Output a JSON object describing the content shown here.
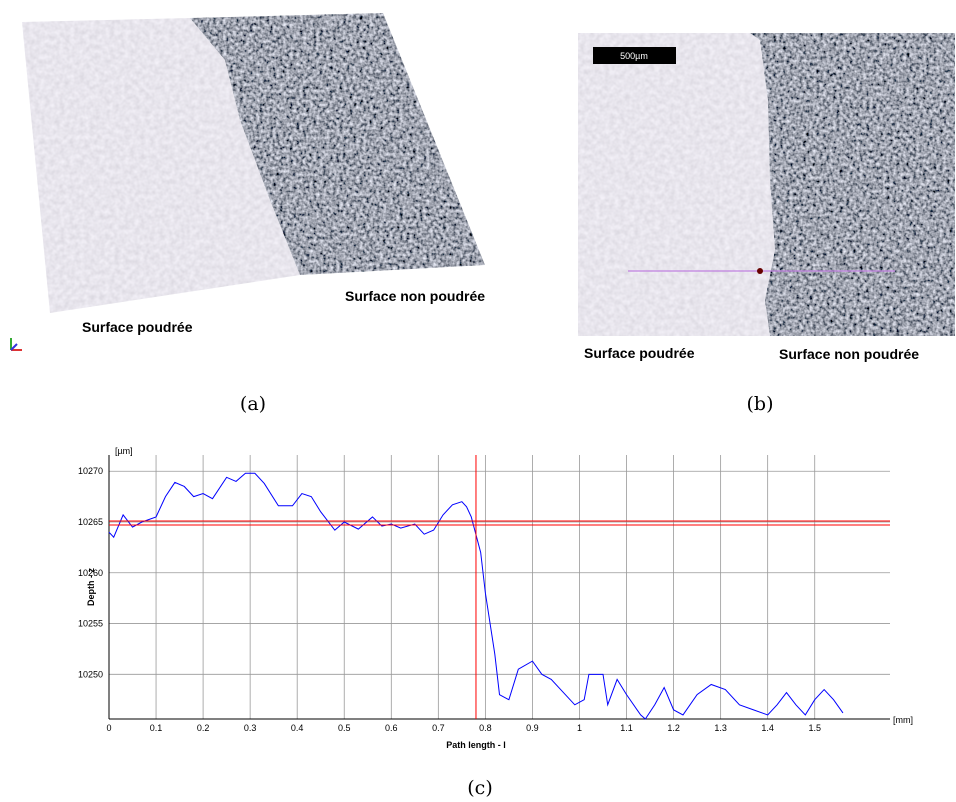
{
  "figures": [
    {
      "caption": "(a)",
      "labels": [
        "Surface non poudrée",
        "Surface poudrée"
      ]
    },
    {
      "caption": "(b)",
      "scale_bar": "500µm",
      "labels": [
        "Surface poudrée",
        "Surface non poudrée"
      ]
    }
  ],
  "chart_data": {
    "type": "line",
    "caption": "(c)",
    "y_unit": "[µm]",
    "y_label": "Depth - z",
    "x_label": "Path length - l",
    "x_unit": "[mm]",
    "x": [
      0,
      0.01,
      0.03,
      0.05,
      0.07,
      0.1,
      0.12,
      0.14,
      0.16,
      0.18,
      0.2,
      0.22,
      0.25,
      0.27,
      0.29,
      0.31,
      0.33,
      0.36,
      0.39,
      0.41,
      0.43,
      0.45,
      0.48,
      0.5,
      0.53,
      0.56,
      0.58,
      0.6,
      0.62,
      0.65,
      0.67,
      0.69,
      0.71,
      0.73,
      0.75,
      0.76,
      0.77,
      0.79,
      0.8,
      0.82,
      0.83,
      0.85,
      0.87,
      0.9,
      0.92,
      0.94,
      0.96,
      0.99,
      1.01,
      1.02,
      1.05,
      1.06,
      1.08,
      1.1,
      1.13,
      1.14,
      1.16,
      1.18,
      1.2,
      1.22,
      1.25,
      1.28,
      1.31,
      1.34,
      1.37,
      1.4,
      1.42,
      1.44,
      1.46,
      1.48,
      1.5,
      1.52,
      1.54,
      1.56
    ],
    "series": [
      {
        "color": "#0000ff",
        "values": [
          10264,
          10263.5,
          10265.7,
          10264.5,
          10265,
          10265.5,
          10267.5,
          10268.9,
          10268.5,
          10267.5,
          10267.8,
          10267.3,
          10269.4,
          10269,
          10269.8,
          10269.8,
          10268.8,
          10266.6,
          10266.6,
          10267.8,
          10267.5,
          10266,
          10264.2,
          10265,
          10264.3,
          10265.5,
          10264.6,
          10264.8,
          10264.4,
          10264.8,
          10263.8,
          10264.2,
          10265.7,
          10266.7,
          10267,
          10266.5,
          10265.5,
          10262,
          10258,
          10252,
          10248,
          10247.5,
          10250.5,
          10251.3,
          10250,
          10249.5,
          10248.5,
          10247,
          10247.5,
          10250,
          10250,
          10247,
          10249.5,
          10248,
          10246,
          10245.6,
          10247,
          10248.7,
          10246.5,
          10246,
          10248,
          10249,
          10248.5,
          10247,
          10246.5,
          10246,
          10247,
          10248.2,
          10247,
          10246,
          10247.5,
          10248.5,
          10247.5,
          10246.2
        ]
      }
    ],
    "cursor": {
      "color": "#ff0000",
      "x": 0.78,
      "y": [
        10265.1,
        10264.7
      ]
    },
    "xlim": [
      0,
      1.66
    ],
    "ylim": [
      10245.6,
      10271.6
    ],
    "xticks": [
      0,
      0.1,
      0.2,
      0.3,
      0.4,
      0.5,
      0.6,
      0.7,
      0.8,
      0.9,
      1,
      1.1,
      1.2,
      1.3,
      1.4,
      1.5
    ],
    "yticks": [
      10250,
      10255,
      10260,
      10265,
      10270
    ],
    "grid": true
  }
}
